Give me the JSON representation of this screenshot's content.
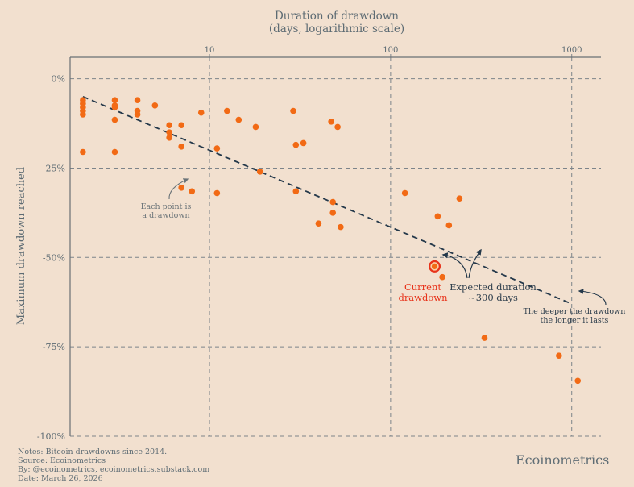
{
  "colors": {
    "background": "#f2e0cf",
    "point": "#f26a15",
    "current": "#e8321a",
    "trend": "#24384a",
    "grid": "#7d848a",
    "text": "#5d6b73"
  },
  "chart_data": {
    "type": "scatter",
    "title": "Duration of drawdown",
    "subtitle": "(days, logarithmic scale)",
    "xlabel": "Duration of drawdown (days, logarithmic scale)",
    "ylabel": "Maximum drawdown reached",
    "xscale": "log",
    "xlim": [
      1.7,
      1450
    ],
    "ylim": [
      -100,
      6
    ],
    "xticks": [
      10,
      100,
      1000
    ],
    "xtick_labels": [
      "10",
      "100",
      "1000"
    ],
    "yticks": [
      0,
      -25,
      -50,
      -75,
      -100
    ],
    "ytick_labels": [
      "0%",
      "-25%",
      "-50%",
      "-75%",
      "-100%"
    ],
    "grid": true,
    "points": [
      {
        "x": 2,
        "y": -6
      },
      {
        "x": 2,
        "y": -7
      },
      {
        "x": 2,
        "y": -8
      },
      {
        "x": 2,
        "y": -9
      },
      {
        "x": 2,
        "y": -10
      },
      {
        "x": 2,
        "y": -20.5
      },
      {
        "x": 3,
        "y": -6
      },
      {
        "x": 3,
        "y": -7.5
      },
      {
        "x": 3,
        "y": -8
      },
      {
        "x": 3,
        "y": -11.5
      },
      {
        "x": 3,
        "y": -20.5
      },
      {
        "x": 4,
        "y": -6
      },
      {
        "x": 4,
        "y": -9
      },
      {
        "x": 4,
        "y": -10
      },
      {
        "x": 5,
        "y": -7.5
      },
      {
        "x": 6,
        "y": -13
      },
      {
        "x": 6,
        "y": -15
      },
      {
        "x": 6,
        "y": -16.5
      },
      {
        "x": 7,
        "y": -13
      },
      {
        "x": 7,
        "y": -19
      },
      {
        "x": 7,
        "y": -30.5
      },
      {
        "x": 8,
        "y": -31.5
      },
      {
        "x": 9,
        "y": -9.5
      },
      {
        "x": 11,
        "y": -19.5
      },
      {
        "x": 11,
        "y": -32
      },
      {
        "x": 12.5,
        "y": -9
      },
      {
        "x": 14.5,
        "y": -11.5
      },
      {
        "x": 18,
        "y": -13.5
      },
      {
        "x": 19,
        "y": -26
      },
      {
        "x": 29,
        "y": -9
      },
      {
        "x": 30,
        "y": -18.5
      },
      {
        "x": 30,
        "y": -31.5
      },
      {
        "x": 33,
        "y": -18
      },
      {
        "x": 40,
        "y": -40.5
      },
      {
        "x": 47,
        "y": -12
      },
      {
        "x": 48,
        "y": -34.5
      },
      {
        "x": 48,
        "y": -37.5
      },
      {
        "x": 51,
        "y": -13.5
      },
      {
        "x": 53,
        "y": -41.5
      },
      {
        "x": 120,
        "y": -32
      },
      {
        "x": 182,
        "y": -38.5
      },
      {
        "x": 193,
        "y": -55.5
      },
      {
        "x": 210,
        "y": -41
      },
      {
        "x": 240,
        "y": -33.5
      },
      {
        "x": 330,
        "y": -72.5
      },
      {
        "x": 850,
        "y": -77.5
      },
      {
        "x": 1080,
        "y": -84.5
      }
    ],
    "current_point": {
      "x": 175,
      "y": -52.5
    },
    "trendline": {
      "x": [
        2,
        1000
      ],
      "y": [
        -5,
        -63
      ]
    },
    "annotations": [
      {
        "key": "each_point",
        "lines": [
          "Each point is",
          "a drawdown"
        ]
      },
      {
        "key": "current",
        "lines": [
          "Current",
          "drawdown"
        ]
      },
      {
        "key": "expected",
        "lines": [
          "Expected duration",
          "~300 days"
        ]
      },
      {
        "key": "deeper",
        "lines": [
          "The deeper the drawdown",
          "the longer it lasts"
        ]
      }
    ]
  },
  "notes": {
    "line1": "Notes: Bitcoin drawdowns since 2014.",
    "line2": "Source: Ecoinometrics",
    "line3": "By: @ecoinometrics, ecoinometrics.substack.com",
    "line4": "Date: March 26, 2026"
  },
  "brand": "Ecoinometrics"
}
